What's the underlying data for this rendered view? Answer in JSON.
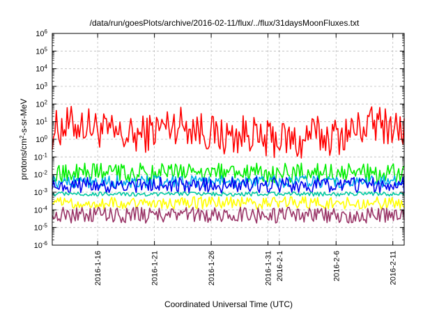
{
  "chart_data": {
    "type": "line",
    "title": "/data/run/goesPlots/archive/2016-02-11/flux/../flux/31daysMoonFluxes.txt",
    "xlabel": "Coordinated Universal Time (UTC)",
    "ylabel_prefix": "protons/cm",
    "ylabel_sup": "2",
    "ylabel_suffix": "-s-sr-MeV",
    "y_scale": "log",
    "ylim_exponents": [
      -6,
      6
    ],
    "y_tick_exponents": [
      -6,
      -5,
      -4,
      -3,
      -2,
      -1,
      0,
      1,
      2,
      3,
      4,
      5,
      6
    ],
    "y_tick_base": "10",
    "xlim_days": [
      2016.1,
      2016.2
    ],
    "x_ticks": [
      {
        "label": "2016-1-16"
      },
      {
        "label": "2016-1-21"
      },
      {
        "label": "2016-1-26"
      },
      {
        "label": "2016-1-31"
      },
      {
        "label": "2016-2-1"
      },
      {
        "label": "2016-2-6"
      },
      {
        "label": "2016-2-11"
      }
    ],
    "x_range": {
      "start": "2016-01-12",
      "end": "2016-02-12"
    },
    "grid": true,
    "series": [
      {
        "color": "#ff0000",
        "level_log10": 0.5,
        "amplitude": 1.1
      },
      {
        "color": "#00ee00",
        "level_log10": -1.9,
        "amplitude": 0.55
      },
      {
        "color": "#00aaee",
        "level_log10": -2.4,
        "amplitude": 0.35
      },
      {
        "color": "#0000ee",
        "level_log10": -2.6,
        "amplitude": 0.45
      },
      {
        "color": "#00c8a0",
        "level_log10": -3.1,
        "amplitude": 0.12
      },
      {
        "color": "#ffff00",
        "level_log10": -3.6,
        "amplitude": 0.35
      },
      {
        "color": "#993366",
        "level_log10": -4.3,
        "amplitude": 0.45
      }
    ]
  }
}
